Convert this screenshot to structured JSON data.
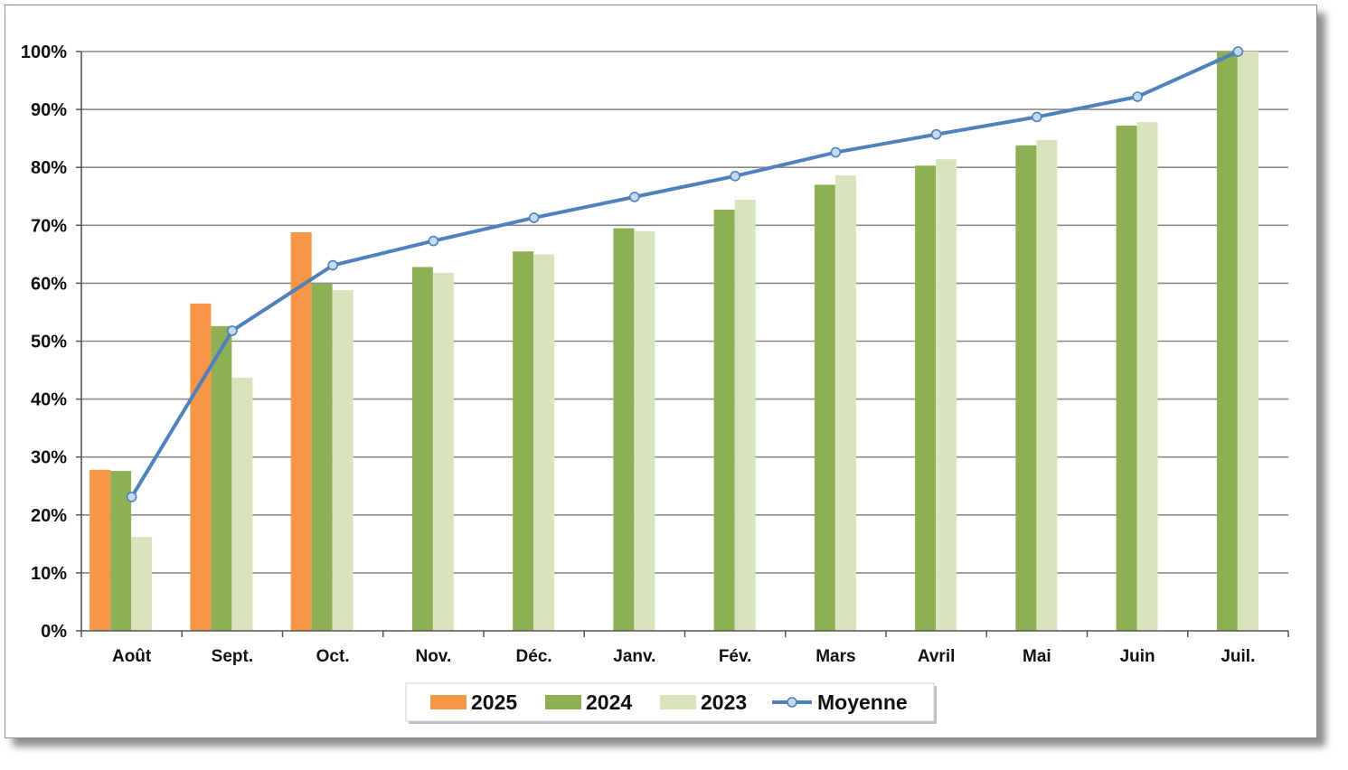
{
  "chart_data": {
    "type": "bar",
    "title": "",
    "xlabel": "",
    "ylabel": "",
    "ylim": [
      0,
      100
    ],
    "y_ticks": [
      "0%",
      "10%",
      "20%",
      "30%",
      "40%",
      "50%",
      "60%",
      "70%",
      "80%",
      "90%",
      "100%"
    ],
    "grid": true,
    "legend_position": "bottom",
    "categories": [
      "Août",
      "Sept.",
      "Oct.",
      "Nov.",
      "Déc.",
      "Janv.",
      "Fév.",
      "Mars",
      "Avril",
      "Mai",
      "Juin",
      "Juil."
    ],
    "series": [
      {
        "name": "2025",
        "type": "bar",
        "color": "#f79646",
        "values": [
          27.8,
          56.5,
          68.8,
          null,
          null,
          null,
          null,
          null,
          null,
          null,
          null,
          null
        ]
      },
      {
        "name": "2024",
        "type": "bar",
        "color": "#8faf55",
        "values": [
          27.6,
          52.6,
          59.9,
          62.8,
          65.5,
          69.5,
          72.7,
          77.0,
          80.3,
          83.8,
          87.2,
          100.0
        ]
      },
      {
        "name": "2023",
        "type": "bar",
        "color": "#d8e4bc",
        "values": [
          16.2,
          43.7,
          58.8,
          61.8,
          65.0,
          69.0,
          74.4,
          78.6,
          81.4,
          84.7,
          87.8,
          100.0
        ]
      },
      {
        "name": "Moyenne",
        "type": "line",
        "color": "#4f81bd",
        "marker_fill": "#c5d9f1",
        "values": [
          23.1,
          51.8,
          63.1,
          67.3,
          71.3,
          74.9,
          78.5,
          82.6,
          85.7,
          88.7,
          92.2,
          100.0
        ]
      }
    ]
  }
}
